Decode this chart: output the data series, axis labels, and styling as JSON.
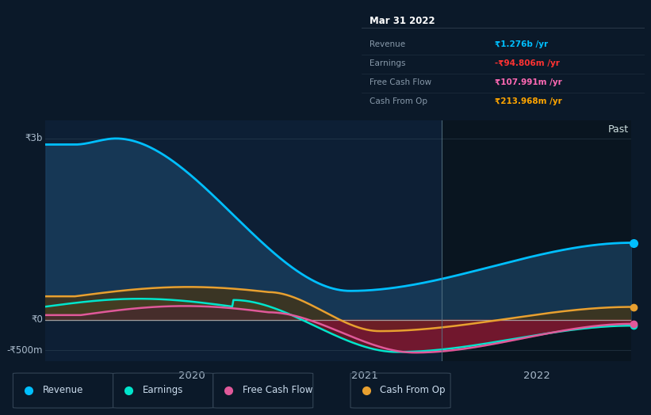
{
  "bg_color": "#0b1929",
  "plot_bg_left": "#0d1f35",
  "plot_bg_right": "#091520",
  "info_bg": "#080e14",
  "info_border": "#2a3a4a",
  "title_text": "Mar 31 2022",
  "info_rows": [
    {
      "label": "Revenue",
      "value": "₹1.276b /yr",
      "vcolor": "#00bfff"
    },
    {
      "label": "Earnings",
      "value": "-₹94.806m /yr",
      "vcolor": "#ff3333"
    },
    {
      "label": "Free Cash Flow",
      "value": "₹107.991m /yr",
      "vcolor": "#ff69b4"
    },
    {
      "label": "Cash From Op",
      "value": "₹213.968m /yr",
      "vcolor": "#ffa500"
    }
  ],
  "ytick_labels": [
    "₹3b",
    "₹0",
    "-₹500m"
  ],
  "ytick_vals": [
    3000,
    0,
    -500
  ],
  "xtick_labels": [
    "2020",
    "2021",
    "2022"
  ],
  "xtick_vals": [
    2020,
    2021,
    2022
  ],
  "xmin": 2019.15,
  "xmax": 2022.55,
  "ymin": -680,
  "ymax": 3300,
  "divider_x": 2021.45,
  "past_label": "Past",
  "revenue_color": "#00bfff",
  "earnings_color": "#00e5cc",
  "fcf_color": "#e0599a",
  "cashop_color": "#e8a030",
  "rev_fill_color": "#1a4060",
  "earn_fill_color": "#2d5040",
  "neg_fill_color": "#6b1520",
  "legend": [
    {
      "label": "Revenue",
      "color": "#00bfff"
    },
    {
      "label": "Earnings",
      "color": "#00e5cc"
    },
    {
      "label": "Free Cash Flow",
      "color": "#e0599a"
    },
    {
      "label": "Cash From Op",
      "color": "#e8a030"
    }
  ]
}
